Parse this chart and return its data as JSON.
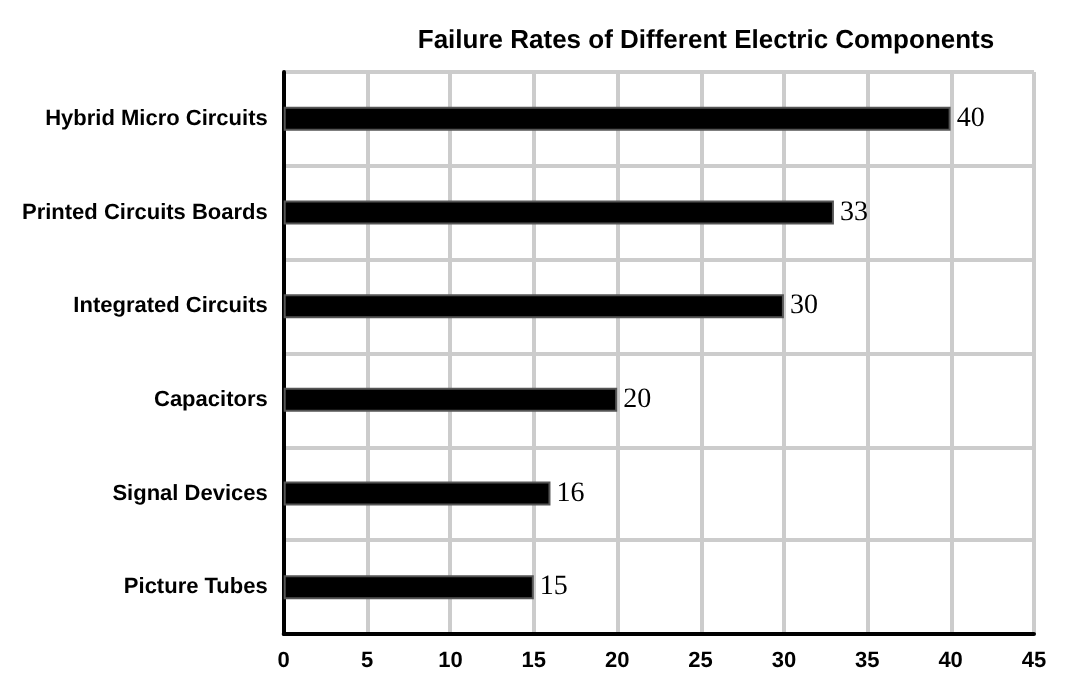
{
  "chart_data": {
    "type": "bar",
    "orientation": "horizontal",
    "title": "Failure Rates of Different Electric Components",
    "categories": [
      "Hybrid Micro Circuits",
      "Printed Circuits Boards",
      "Integrated Circuits",
      "Capacitors",
      "Signal Devices",
      "Picture Tubes"
    ],
    "values": [
      40,
      33,
      30,
      20,
      16,
      15
    ],
    "color": "#000000",
    "xlim": [
      0,
      45
    ],
    "xticks": [
      0,
      5,
      10,
      15,
      20,
      25,
      30,
      35,
      40,
      45
    ],
    "grid": true,
    "data_labels": true
  }
}
